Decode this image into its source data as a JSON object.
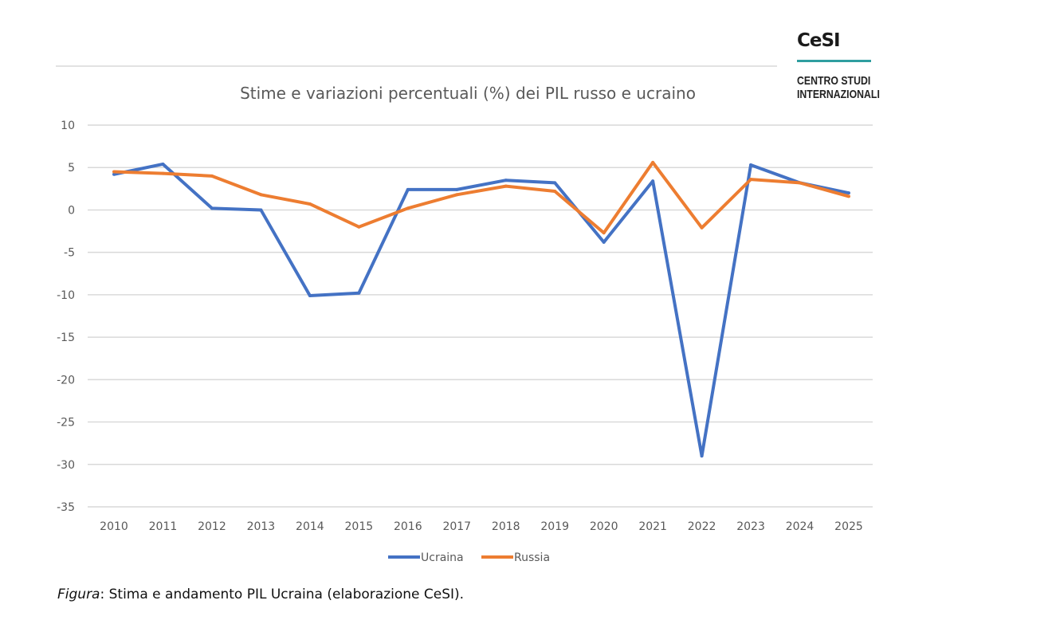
{
  "logo": {
    "mark": "CeSI",
    "line1": "CENTRO STUDI",
    "line2": "INTERNAZIONALI"
  },
  "caption": {
    "prefix": "Figura",
    "text": ": Stima e andamento PIL Ucraina (elaborazione CeSI)."
  },
  "chart_data": {
    "type": "line",
    "title": "Stime e variazioni percentuali (%) dei PIL russo e ucraino",
    "xlabel": "",
    "ylabel": "",
    "categories": [
      "2010",
      "2011",
      "2012",
      "2013",
      "2014",
      "2015",
      "2016",
      "2017",
      "2018",
      "2019",
      "2020",
      "2021",
      "2022",
      "2023",
      "2024",
      "2025"
    ],
    "ylim": [
      -35,
      10
    ],
    "yticks": [
      10,
      5,
      0,
      -5,
      -10,
      -15,
      -20,
      -25,
      -30,
      -35
    ],
    "grid": true,
    "legend": "bottom",
    "series": [
      {
        "name": "Ucraina",
        "color": "#4472c4",
        "values": [
          4.2,
          5.4,
          0.2,
          0.0,
          -10.1,
          -9.8,
          2.4,
          2.4,
          3.5,
          3.2,
          -3.8,
          3.4,
          -29.0,
          5.3,
          3.2,
          2.0
        ]
      },
      {
        "name": "Russia",
        "color": "#ed7d31",
        "values": [
          4.5,
          4.3,
          4.0,
          1.8,
          0.7,
          -2.0,
          0.2,
          1.8,
          2.8,
          2.2,
          -2.7,
          5.6,
          -2.1,
          3.6,
          3.2,
          1.6
        ]
      }
    ]
  }
}
